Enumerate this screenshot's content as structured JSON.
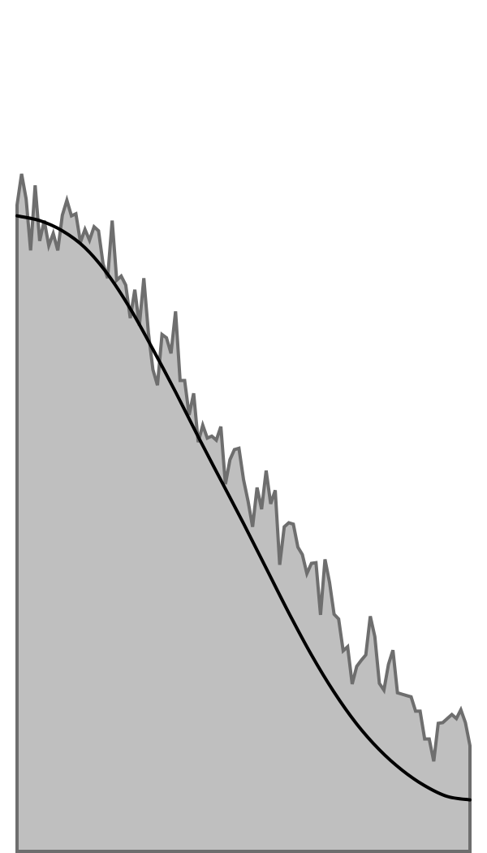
{
  "chart_data": {
    "type": "area",
    "title": "",
    "xlabel": "",
    "ylabel": "",
    "grid": false,
    "legend": "none",
    "xlim": [
      0,
      1
    ],
    "ylim": [
      0,
      1
    ],
    "colors": {
      "fill": "#bfbfbf",
      "outline": "#6e6e6e",
      "trend": "#000000"
    },
    "series": [
      {
        "type": "area",
        "x": [
          0.0,
          0.01,
          0.02,
          0.03,
          0.04,
          0.05,
          0.06,
          0.07,
          0.08,
          0.09,
          0.1,
          0.11,
          0.12,
          0.13,
          0.14,
          0.15,
          0.16,
          0.17,
          0.18,
          0.19,
          0.2,
          0.21,
          0.22,
          0.23,
          0.24,
          0.25,
          0.26,
          0.27,
          0.28,
          0.29,
          0.3,
          0.31,
          0.32,
          0.33,
          0.34,
          0.35,
          0.36,
          0.37,
          0.38,
          0.39,
          0.4,
          0.41,
          0.42,
          0.43,
          0.44,
          0.45,
          0.46,
          0.47,
          0.48,
          0.49,
          0.5,
          0.51,
          0.52,
          0.53,
          0.54,
          0.55,
          0.56,
          0.57,
          0.58,
          0.59,
          0.6,
          0.61,
          0.62,
          0.63,
          0.64,
          0.65,
          0.66,
          0.67,
          0.68,
          0.69,
          0.7,
          0.71,
          0.72,
          0.73,
          0.74,
          0.75,
          0.76,
          0.77,
          0.78,
          0.79,
          0.8,
          0.81,
          0.82,
          0.83,
          0.84,
          0.85,
          0.86,
          0.87,
          0.88,
          0.89,
          0.9,
          0.91,
          0.92,
          0.93,
          0.94,
          0.95,
          0.96,
          0.97,
          0.98,
          0.99,
          1.0
        ],
        "values": [
          0.954,
          1.0,
          0.963,
          0.887,
          0.983,
          0.901,
          0.931,
          0.894,
          0.912,
          0.887,
          0.939,
          0.961,
          0.938,
          0.941,
          0.899,
          0.918,
          0.902,
          0.922,
          0.916,
          0.867,
          0.846,
          0.931,
          0.843,
          0.849,
          0.836,
          0.787,
          0.829,
          0.776,
          0.846,
          0.766,
          0.711,
          0.688,
          0.763,
          0.758,
          0.735,
          0.797,
          0.695,
          0.695,
          0.644,
          0.676,
          0.604,
          0.629,
          0.61,
          0.613,
          0.607,
          0.627,
          0.542,
          0.578,
          0.593,
          0.595,
          0.549,
          0.517,
          0.479,
          0.537,
          0.505,
          0.562,
          0.513,
          0.533,
          0.423,
          0.479,
          0.485,
          0.483,
          0.449,
          0.438,
          0.41,
          0.425,
          0.426,
          0.349,
          0.431,
          0.397,
          0.35,
          0.343,
          0.296,
          0.302,
          0.247,
          0.273,
          0.282,
          0.29,
          0.347,
          0.317,
          0.248,
          0.238,
          0.276,
          0.297,
          0.234,
          0.232,
          0.23,
          0.228,
          0.207,
          0.207,
          0.166,
          0.166,
          0.133,
          0.189,
          0.19,
          0.196,
          0.202,
          0.196,
          0.209,
          0.19,
          0.156
        ]
      },
      {
        "type": "line",
        "x": [
          0.0,
          0.05,
          0.1,
          0.15,
          0.2,
          0.25,
          0.3,
          0.35,
          0.4,
          0.45,
          0.5,
          0.55,
          0.6,
          0.65,
          0.7,
          0.75,
          0.8,
          0.85,
          0.9,
          0.95,
          1.0
        ],
        "values": [
          0.938,
          0.931,
          0.916,
          0.891,
          0.852,
          0.801,
          0.741,
          0.678,
          0.612,
          0.548,
          0.484,
          0.418,
          0.352,
          0.29,
          0.235,
          0.188,
          0.15,
          0.12,
          0.097,
          0.081,
          0.076
        ]
      }
    ]
  }
}
